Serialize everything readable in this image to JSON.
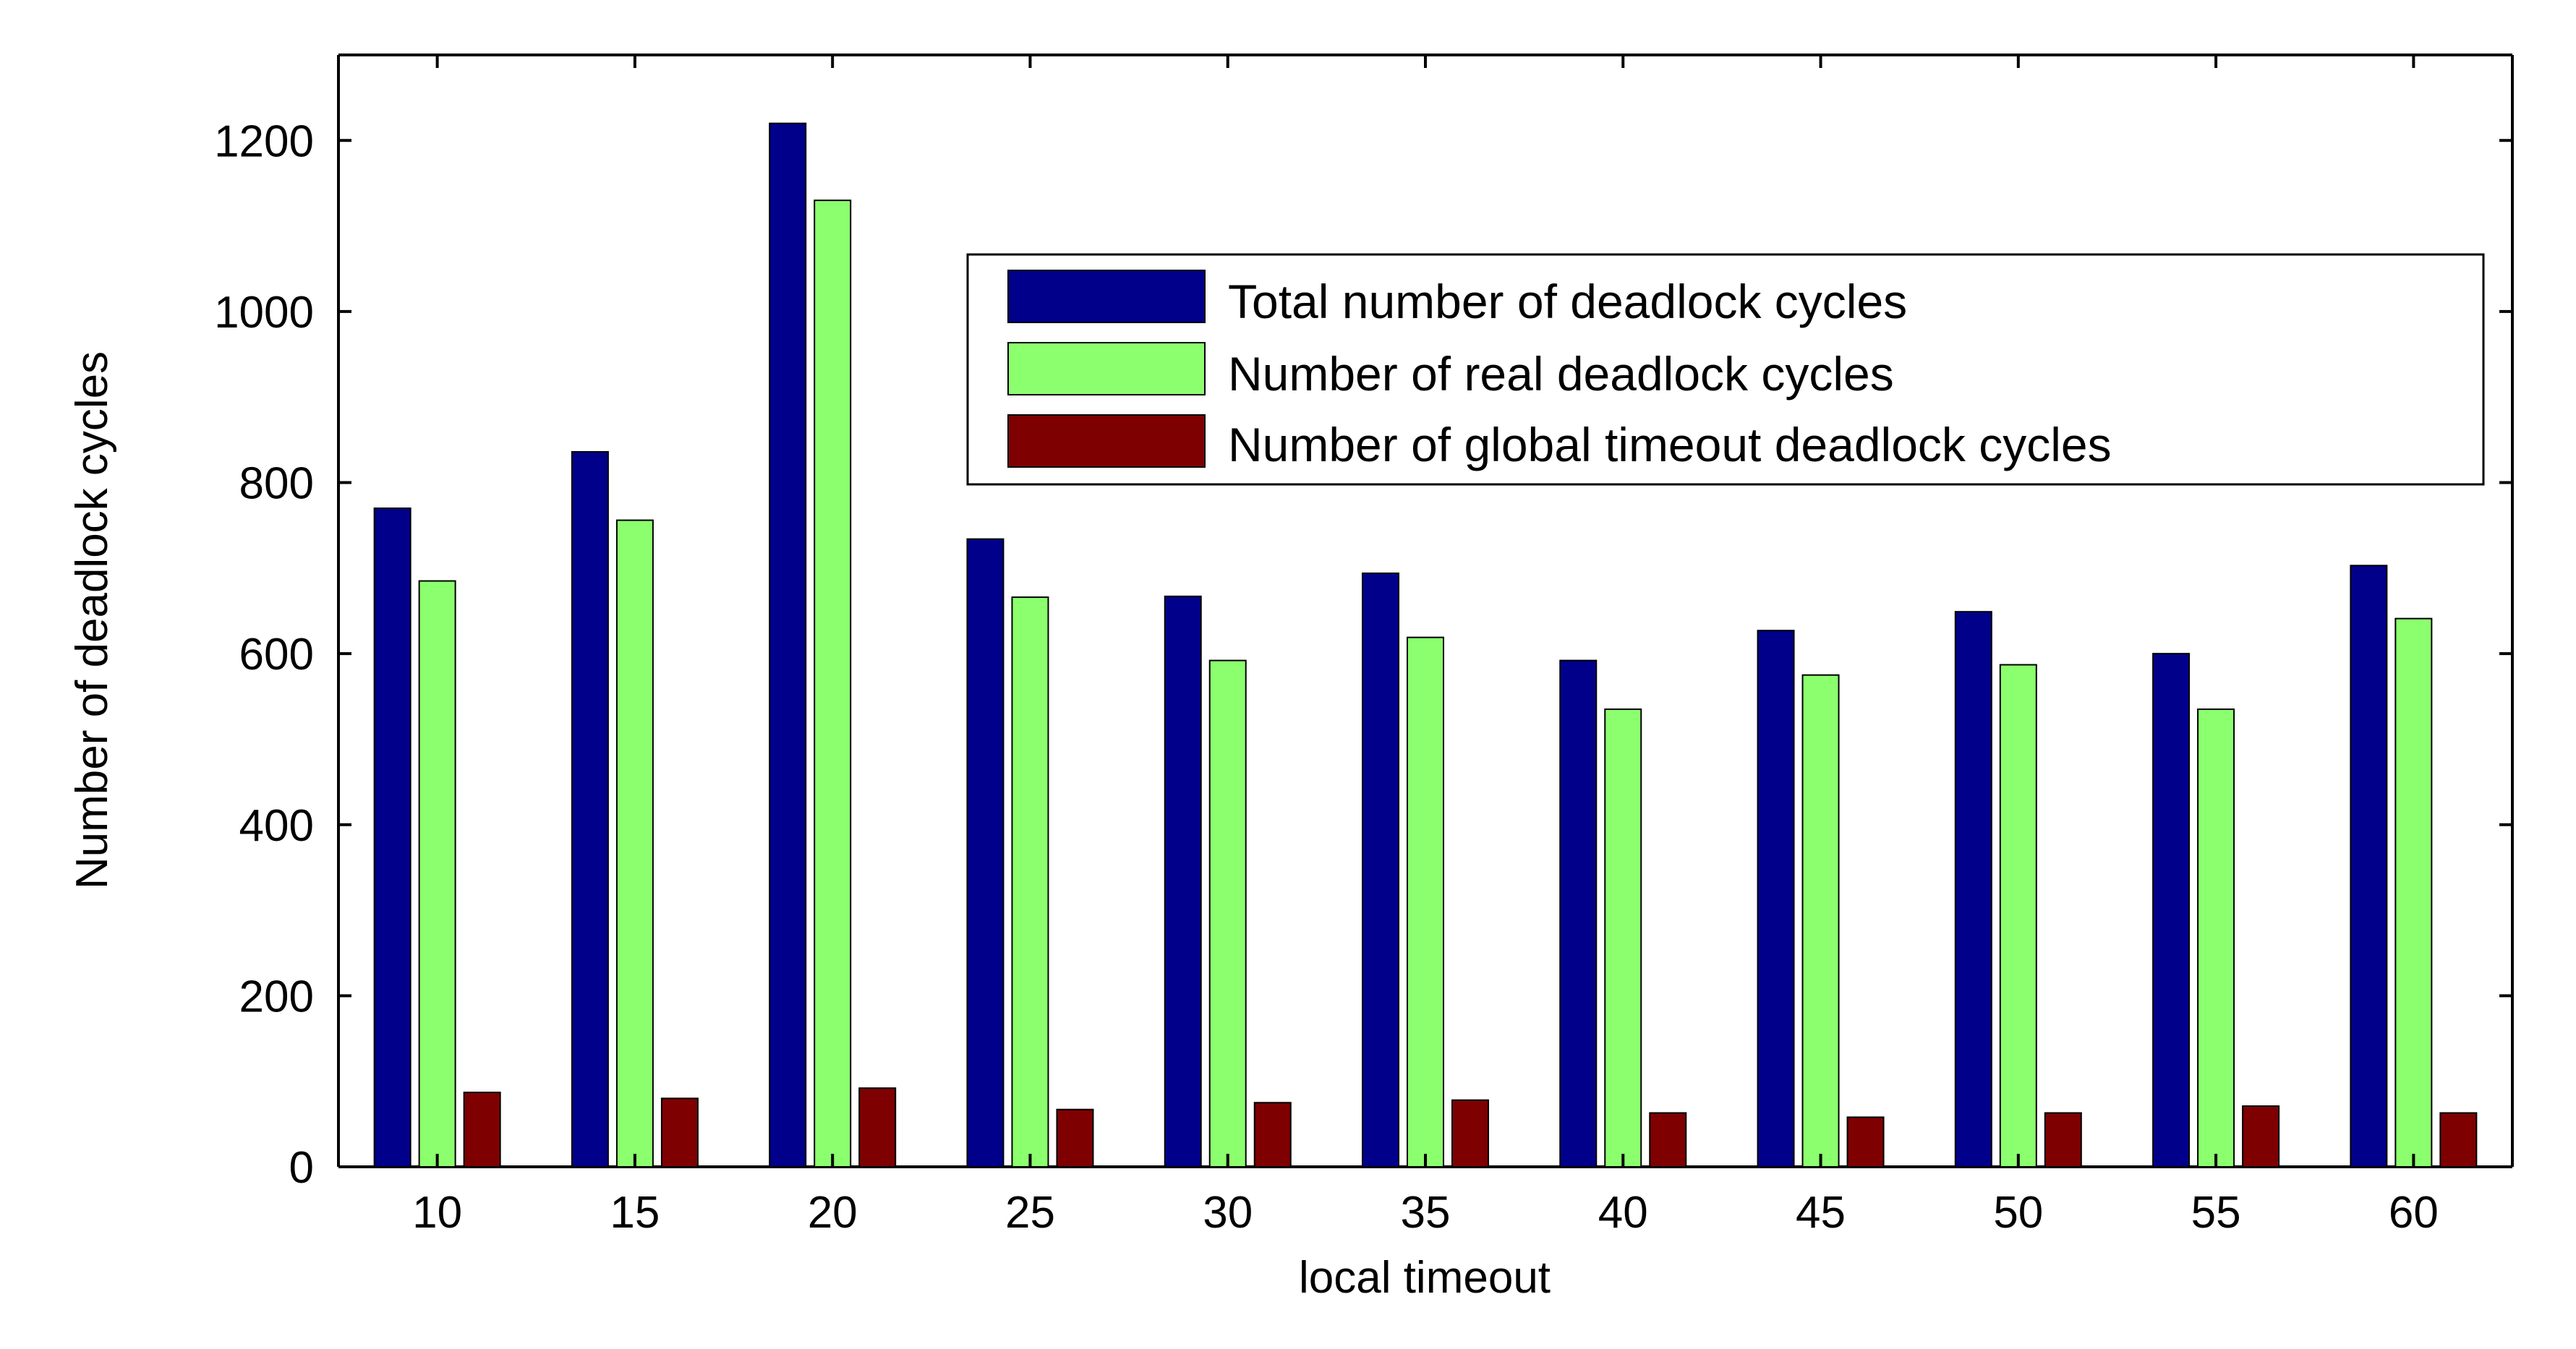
{
  "chart_data": {
    "type": "bar",
    "xlabel": "local timeout",
    "ylabel": "Number of deadlock cycles",
    "categories": [
      "10",
      "15",
      "20",
      "25",
      "30",
      "35",
      "40",
      "45",
      "50",
      "55",
      "60"
    ],
    "series": [
      {
        "name": "Total number of deadlock cycles",
        "color": "#00008B",
        "values": [
          770,
          836,
          1220,
          734,
          667,
          694,
          592,
          627,
          649,
          600,
          703
        ]
      },
      {
        "name": "Number of real deadlock cycles",
        "color": "#8CFF6E",
        "values": [
          685,
          756,
          1130,
          666,
          592,
          619,
          535,
          575,
          587,
          535,
          641
        ]
      },
      {
        "name": "Number of global timeout deadlock cycles",
        "color": "#7F0000",
        "values": [
          87,
          80,
          92,
          67,
          75,
          78,
          63,
          58,
          63,
          71,
          63
        ]
      }
    ],
    "yticks": [
      "0",
      "200",
      "400",
      "600",
      "800",
      "1000",
      "1200"
    ],
    "ylim": [
      0,
      1300
    ],
    "grid": false,
    "legend_position": "top-right"
  }
}
